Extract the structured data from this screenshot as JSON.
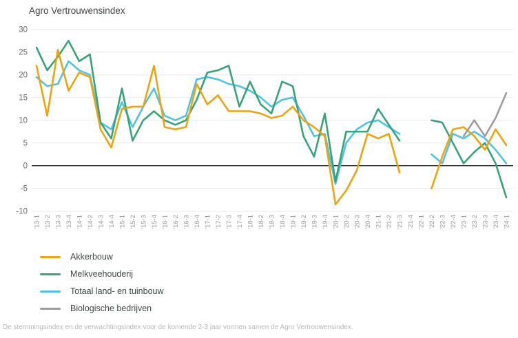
{
  "title": "Agro Vertrouwensindex",
  "footer": "De stemmingsindex en de verwachtingsindex voor de komende 2-3 jaar vormen samen de Agro Vertrouwensindex.",
  "axis_colors": {
    "grid": "#e9e9e9",
    "zero_line": "#222222",
    "y_tick_text": "#6b6b6b",
    "x_tick_text": "#9b9b9b"
  },
  "chart_data": {
    "type": "line",
    "title": "Agro Vertrouwensindex",
    "xlabel": "",
    "ylabel": "",
    "ylim": [
      -10,
      30
    ],
    "ytick_step": 5,
    "grid": true,
    "legend_position": "bottom-left",
    "gap_note": "no survey data for '21-4 and '22-1 (nulls); Biologische bedrijven starts at '23-1",
    "categories": [
      "'13-1",
      "'13-2",
      "'13-3",
      "'13-4",
      "'14-1",
      "'14-2",
      "'14-3",
      "'14-4",
      "'15-1",
      "'15-2",
      "'15-3",
      "'15-4",
      "'16-1",
      "'16-2",
      "'16-3",
      "'16-4",
      "'17-1",
      "'17-2",
      "'17-3",
      "'17-4",
      "'18-1",
      "'18-2",
      "'18-3",
      "'18-4",
      "'19-1",
      "'19-2",
      "'19-3",
      "'19-4",
      "'20-1",
      "'20-2",
      "'20-3",
      "'20-4",
      "'21-1",
      "'21-2",
      "'21-3",
      "'21-4",
      "'22-1",
      "'22-2",
      "'22-3",
      "'22-4",
      "'23-1",
      "'23-2",
      "'23-3",
      "'23-4",
      "'24-1"
    ],
    "series": [
      {
        "name": "Akkerbouw",
        "color": "#f0a30a",
        "values": [
          22,
          11,
          25.5,
          16.5,
          20.5,
          19.5,
          8,
          4,
          12.5,
          13,
          13,
          22,
          8.5,
          8,
          8.5,
          18,
          13.5,
          15.5,
          12,
          12,
          12,
          11.5,
          10.5,
          11,
          13,
          10,
          8.5,
          6.5,
          -8.5,
          -5.5,
          -1,
          7,
          6,
          7,
          -1.5,
          null,
          null,
          -5,
          2,
          8,
          8.5,
          6.5,
          3.5,
          8,
          4.5
        ]
      },
      {
        "name": "Melkveehouderij",
        "color": "#36a477",
        "values": [
          26,
          21,
          24,
          27.5,
          23,
          24.5,
          9.5,
          6,
          17,
          5.5,
          10,
          12,
          10,
          9,
          10,
          14.5,
          20.5,
          21,
          22,
          13,
          18.5,
          13.5,
          11.5,
          18.5,
          17.5,
          6.5,
          2,
          11.5,
          -3.5,
          7.5,
          7.5,
          7.5,
          12.5,
          9,
          5.5,
          null,
          null,
          10,
          9.5,
          5,
          0.5,
          3,
          5,
          0.5,
          -7
        ]
      },
      {
        "name": "Totaal land- en tuinbouw",
        "color": "#4ec3e8",
        "values": [
          19.5,
          17.5,
          18,
          23,
          21,
          20,
          9.5,
          8,
          14,
          8.5,
          13,
          17,
          11,
          10,
          11,
          19,
          19.5,
          19,
          18,
          17.5,
          16.5,
          15,
          13,
          14.5,
          15,
          11,
          6.5,
          7,
          -4,
          5,
          8,
          9.5,
          10,
          8.5,
          7,
          null,
          null,
          2.5,
          0.5,
          7,
          6,
          7.5,
          6,
          3.5,
          0.5
        ]
      },
      {
        "name": "Biologische bedrijven",
        "color": "#9c9c9c",
        "values": [
          null,
          null,
          null,
          null,
          null,
          null,
          null,
          null,
          null,
          null,
          null,
          null,
          null,
          null,
          null,
          null,
          null,
          null,
          null,
          null,
          null,
          null,
          null,
          null,
          null,
          null,
          null,
          null,
          null,
          null,
          null,
          null,
          null,
          null,
          null,
          null,
          null,
          null,
          null,
          null,
          6.5,
          10,
          6.5,
          10.5,
          16
        ]
      }
    ]
  }
}
